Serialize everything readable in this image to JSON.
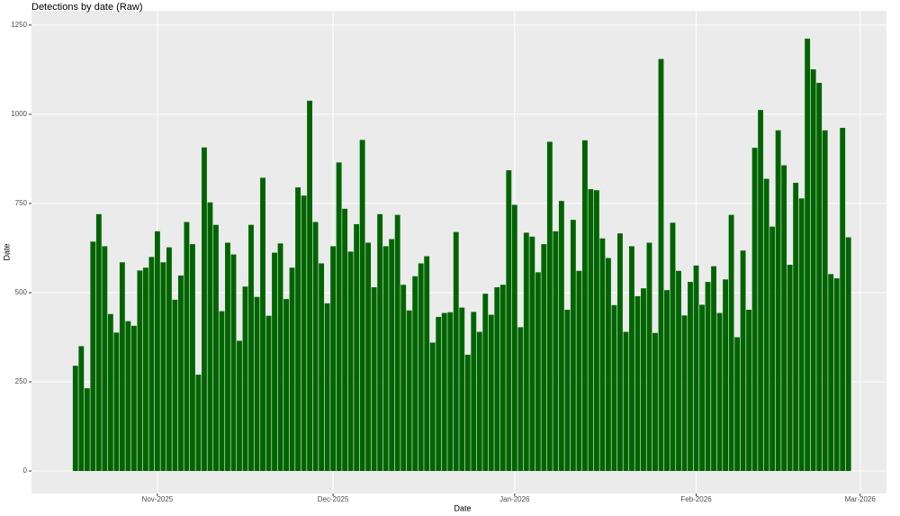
{
  "chart_data": {
    "type": "bar",
    "title": "Detections by date (Raw)",
    "x_label": "Date",
    "y_label": "Date",
    "categories": [
      null,
      null,
      null,
      null,
      null,
      null,
      null,
      null,
      null,
      null,
      null,
      null,
      null,
      null,
      null,
      null,
      null,
      null,
      null,
      null,
      null,
      null,
      null,
      null,
      null,
      null,
      null,
      null,
      null,
      null,
      null,
      null,
      null,
      null,
      null,
      null,
      null,
      null,
      null,
      null,
      null,
      null,
      null,
      null,
      null,
      null,
      null,
      null,
      null,
      null,
      null,
      null,
      null,
      null,
      null,
      null,
      null,
      null,
      null,
      null,
      null,
      null,
      null,
      null,
      null,
      null,
      null,
      null,
      null,
      null,
      null,
      null,
      null,
      null,
      null,
      null,
      null,
      null,
      null,
      null,
      null,
      null,
      null,
      null,
      null,
      null,
      null,
      null,
      null,
      null,
      null,
      null,
      null,
      null,
      null,
      null,
      null,
      null,
      null,
      null,
      null,
      null,
      null,
      null,
      null,
      null,
      null,
      null,
      null,
      null,
      null,
      null,
      null,
      null,
      null,
      null,
      null,
      null,
      null,
      null,
      null,
      null,
      null,
      null,
      null,
      null,
      null,
      null,
      null,
      null,
      null,
      null,
      null
    ],
    "values": [
      295,
      350,
      232,
      643,
      720,
      630,
      440,
      388,
      585,
      420,
      407,
      562,
      570,
      600,
      672,
      585,
      627,
      480,
      548,
      698,
      636,
      270,
      907,
      753,
      690,
      448,
      640,
      607,
      365,
      517,
      690,
      488,
      822,
      435,
      612,
      638,
      482,
      570,
      795,
      772,
      1038,
      698,
      582,
      470,
      630,
      865,
      735,
      615,
      692,
      928,
      640,
      515,
      720,
      630,
      650,
      718,
      522,
      450,
      546,
      582,
      602,
      360,
      432,
      443,
      445,
      670,
      458,
      326,
      446,
      390,
      497,
      438,
      515,
      522,
      843,
      746,
      403,
      668,
      657,
      557,
      636,
      923,
      672,
      757,
      452,
      704,
      561,
      927,
      790,
      787,
      652,
      597,
      465,
      666,
      390,
      630,
      490,
      512,
      640,
      387,
      1155,
      507,
      696,
      561,
      436,
      530,
      576,
      466,
      530,
      574,
      443,
      537,
      718,
      375,
      618,
      452,
      906,
      1012,
      819,
      685,
      955,
      857,
      578,
      808,
      764,
      1212,
      1126,
      1088,
      955,
      552,
      540,
      962,
      655
    ],
    "color": "#006400",
    "xlim": [
      -7.5,
      138.5
    ],
    "xticks": [
      {
        "value": 14,
        "label": "Nov-2025"
      },
      {
        "value": 44,
        "label": "Dec-2025"
      },
      {
        "value": 75,
        "label": "Jan-2026"
      },
      {
        "value": 106,
        "label": "Feb-2026"
      },
      {
        "value": 134,
        "label": "Mar-2026"
      }
    ],
    "ylim": [
      -63,
      1290
    ],
    "yticks": [
      0,
      250,
      500,
      750,
      1000,
      1250
    ],
    "grid": true
  }
}
